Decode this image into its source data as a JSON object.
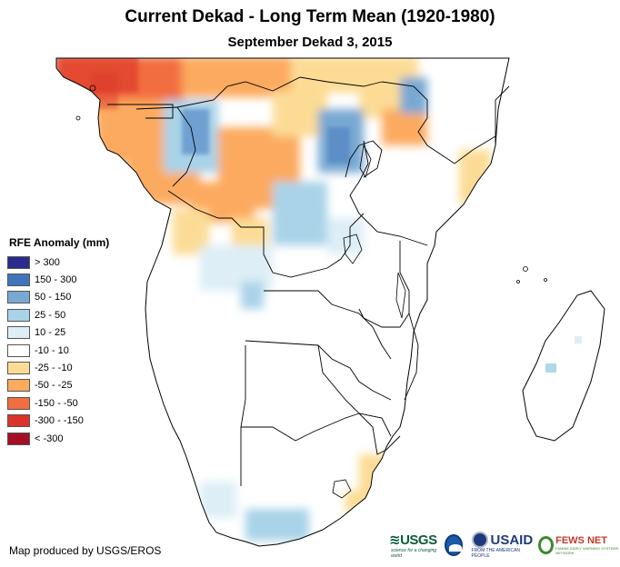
{
  "title": "Current Dekad - Long Term Mean (1920-1980)",
  "subtitle": "September Dekad 3, 2015",
  "legend": {
    "title": "RFE Anomaly (mm)",
    "items": [
      {
        "label": "> 300",
        "color": "#2b2b8c"
      },
      {
        "label": "150 - 300",
        "color": "#3f74bd"
      },
      {
        "label": "50 - 150",
        "color": "#78a9d3"
      },
      {
        "label": "25 - 50",
        "color": "#a9d3e8"
      },
      {
        "label": "10 - 25",
        "color": "#ddeef6"
      },
      {
        "label": "-10 - 10",
        "color": "#ffffff"
      },
      {
        "label": "-25 - -10",
        "color": "#fcdc95"
      },
      {
        "label": "-50 - -25",
        "color": "#fcaa5e"
      },
      {
        "label": "-150 - -50",
        "color": "#f26d3f"
      },
      {
        "label": "-300 - -150",
        "color": "#d9332a"
      },
      {
        "label": "< -300",
        "color": "#a50f25"
      }
    ]
  },
  "footer": "Map produced by USGS/EROS",
  "logos": {
    "usgs": "USGS",
    "usgs_tagline": "science for a changing world",
    "noaa": "NOAA",
    "usaid": "USAID",
    "usaid_tagline": "FROM THE AMERICAN PEOPLE",
    "fews": "FEWS NET",
    "fews_tagline": "FAMINE EARLY WARNING SYSTEMS NETWORK"
  }
}
